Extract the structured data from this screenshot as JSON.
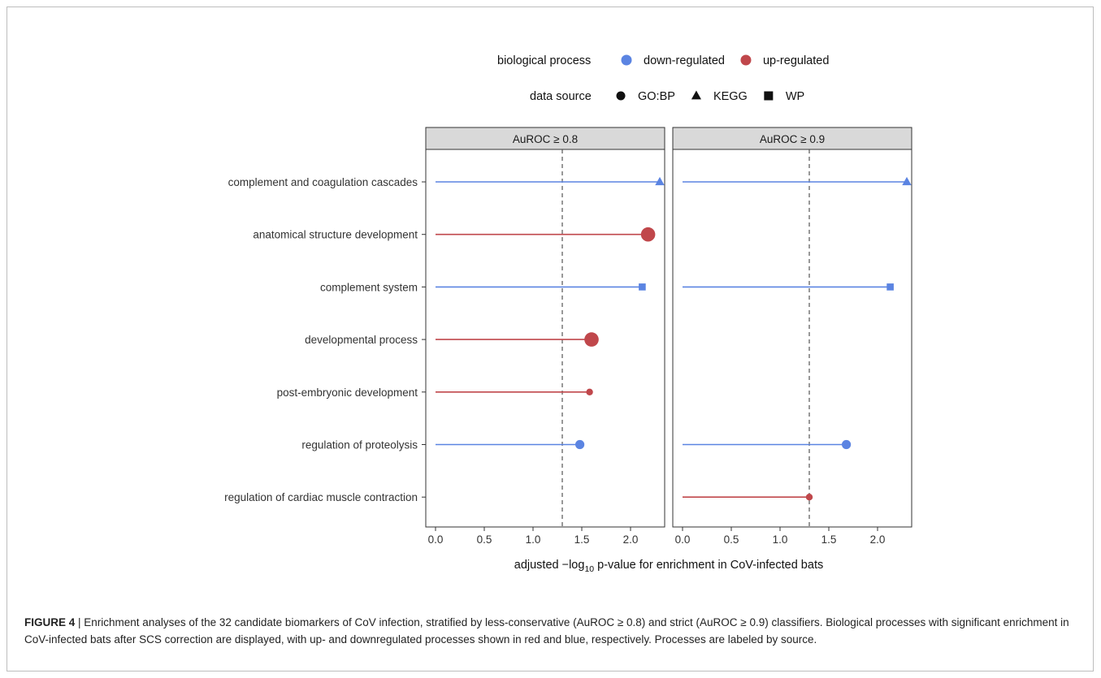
{
  "legend": {
    "color_title": "biological process",
    "color_entries": [
      {
        "label": "down-regulated",
        "color": "#5b84e2"
      },
      {
        "label": "up-regulated",
        "color": "#c0474b"
      }
    ],
    "shape_title": "data source",
    "shape_entries": [
      {
        "label": "GO:BP",
        "shape": "circle"
      },
      {
        "label": "KEGG",
        "shape": "triangle"
      },
      {
        "label": "WP",
        "shape": "square"
      }
    ]
  },
  "chart_data": {
    "type": "lollipop",
    "x_label_prefix": "adjusted −log",
    "x_label_sub": "10",
    "x_label_suffix": " p-value for enrichment in CoV-infected bats",
    "xlim": [
      -0.1,
      2.35
    ],
    "x_ticks": [
      "0.0",
      "0.5",
      "1.0",
      "1.5",
      "2.0"
    ],
    "threshold": 1.3,
    "grid": false,
    "legend_position": "top",
    "categories": [
      "complement and coagulation cascades",
      "anatomical structure development",
      "complement system",
      "developmental process",
      "post-embryonic development",
      "regulation of proteolysis",
      "regulation of cardiac muscle contraction"
    ],
    "panels": [
      {
        "title": "AuROC ≥ 0.8",
        "points": [
          {
            "category": "complement and coagulation cascades",
            "value": 2.3,
            "direction": "down-regulated",
            "source": "KEGG",
            "size": "medium"
          },
          {
            "category": "anatomical structure development",
            "value": 2.18,
            "direction": "up-regulated",
            "source": "GO:BP",
            "size": "large"
          },
          {
            "category": "complement system",
            "value": 2.12,
            "direction": "down-regulated",
            "source": "WP",
            "size": "medium"
          },
          {
            "category": "developmental process",
            "value": 1.6,
            "direction": "up-regulated",
            "source": "GO:BP",
            "size": "large"
          },
          {
            "category": "post-embryonic development",
            "value": 1.58,
            "direction": "up-regulated",
            "source": "GO:BP",
            "size": "small"
          },
          {
            "category": "regulation of proteolysis",
            "value": 1.48,
            "direction": "down-regulated",
            "source": "GO:BP",
            "size": "medium"
          }
        ]
      },
      {
        "title": "AuROC ≥ 0.9",
        "points": [
          {
            "category": "complement and coagulation cascades",
            "value": 2.3,
            "direction": "down-regulated",
            "source": "KEGG",
            "size": "medium"
          },
          {
            "category": "complement system",
            "value": 2.13,
            "direction": "down-regulated",
            "source": "WP",
            "size": "medium"
          },
          {
            "category": "regulation of proteolysis",
            "value": 1.68,
            "direction": "down-regulated",
            "source": "GO:BP",
            "size": "medium"
          },
          {
            "category": "regulation of cardiac muscle contraction",
            "value": 1.3,
            "direction": "up-regulated",
            "source": "GO:BP",
            "size": "small"
          }
        ]
      }
    ]
  },
  "caption": {
    "label": "FIGURE 4",
    "separator": " | ",
    "text": "Enrichment analyses of the 32 candidate biomarkers of CoV infection, stratified by less-conservative (AuROC ≥ 0.8) and strict (AuROC ≥ 0.9) classifiers. Biological processes with significant enrichment in CoV-infected bats after SCS correction are displayed, with up- and downregulated processes shown in red and blue, respectively. Processes are labeled by source."
  }
}
